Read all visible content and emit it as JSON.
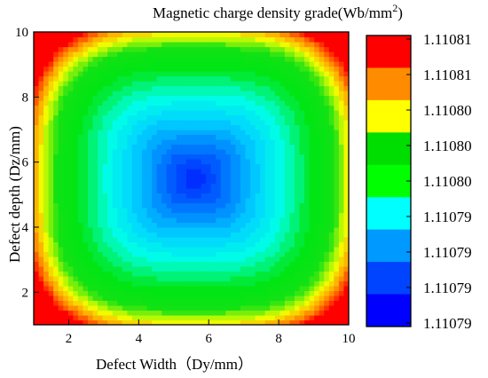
{
  "chart_data": {
    "type": "heatmap",
    "title": "Magnetic charge density grade(Wb/mm",
    "title_superscript": "2",
    "title_suffix": ")",
    "xlabel": "Defect Width（Dy/mm）",
    "ylabel": "Defect depth (Dz/mm)",
    "xlim": [
      1,
      10
    ],
    "ylim": [
      1,
      10
    ],
    "x_ticks": [
      2,
      4,
      6,
      8,
      10
    ],
    "y_ticks": [
      2,
      4,
      6,
      8,
      10
    ],
    "center": [
      5.6,
      5.5
    ],
    "colorbar": {
      "labels": [
        "1.11081",
        "1.11081",
        "1.11080",
        "1.11080",
        "1.11080",
        "1.11079",
        "1.11079",
        "1.11079",
        "1.11079"
      ],
      "colors": [
        "#ff0000",
        "#ff8c00",
        "#ffff00",
        "#00dd00",
        "#00ff00",
        "#00ffff",
        "#0099ff",
        "#0044ff",
        "#0000ff"
      ]
    }
  }
}
